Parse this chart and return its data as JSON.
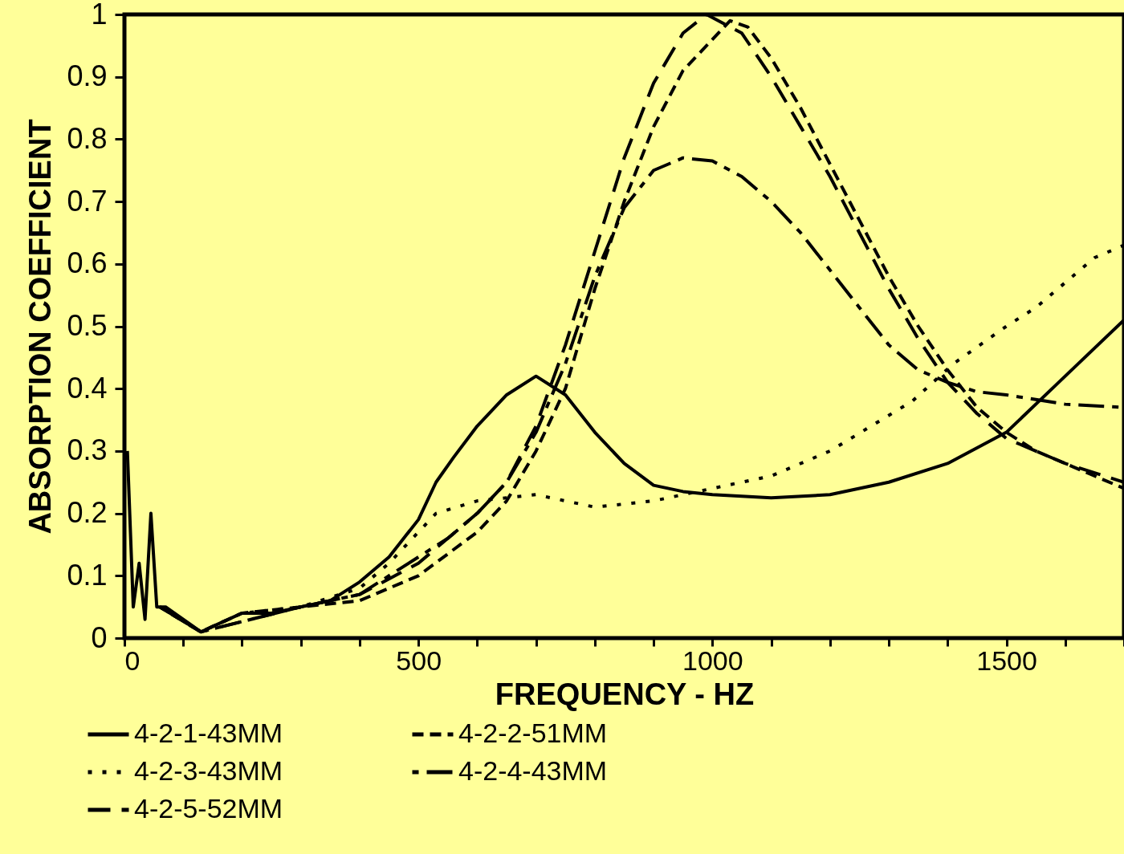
{
  "chart_data": {
    "type": "line",
    "xlabel": "FREQUENCY - HZ",
    "ylabel": "ABSORPTION COEFFICIENT",
    "xlim": [
      0,
      1700
    ],
    "ylim": [
      0,
      1
    ],
    "xticks": [
      0,
      {
        "value": 100,
        "label": null
      },
      {
        "value": 200,
        "label": null
      },
      {
        "value": 300,
        "label": null
      },
      {
        "value": 400,
        "label": null
      },
      500,
      {
        "value": 600,
        "label": null
      },
      {
        "value": 700,
        "label": null
      },
      {
        "value": 800,
        "label": null
      },
      {
        "value": 900,
        "label": null
      },
      1000,
      {
        "value": 1100,
        "label": null
      },
      {
        "value": 1200,
        "label": null
      },
      {
        "value": 1300,
        "label": null
      },
      {
        "value": 1400,
        "label": null
      },
      1500,
      {
        "value": 1600,
        "label": null
      },
      {
        "value": 1700,
        "label": null
      }
    ],
    "yticks": [
      0,
      0.1,
      0.2,
      0.3,
      0.4,
      0.5,
      0.6,
      0.7,
      0.8,
      0.9,
      1
    ],
    "grid": false,
    "legend": "bottom",
    "marker": "none",
    "series": [
      {
        "name": "4-2-1-43MM",
        "color": "#000000",
        "line_style": "solid",
        "x": [
          5,
          15,
          25,
          35,
          45,
          55,
          70,
          100,
          130,
          200,
          250,
          300,
          350,
          400,
          450,
          500,
          530,
          560,
          600,
          650,
          700,
          750,
          800,
          850,
          900,
          950,
          1000,
          1100,
          1200,
          1300,
          1400,
          1500,
          1600,
          1700
        ],
        "values": [
          0.3,
          0.05,
          0.12,
          0.03,
          0.2,
          0.05,
          0.05,
          0.03,
          0.01,
          0.04,
          0.04,
          0.05,
          0.06,
          0.09,
          0.13,
          0.19,
          0.25,
          0.29,
          0.34,
          0.39,
          0.42,
          0.39,
          0.33,
          0.28,
          0.245,
          0.235,
          0.23,
          0.225,
          0.23,
          0.25,
          0.28,
          0.33,
          0.42,
          0.51
        ]
      },
      {
        "name": "4-2-2-51MM",
        "color": "#000000",
        "line_style": "dashed",
        "x": [
          60,
          130,
          200,
          300,
          400,
          500,
          600,
          650,
          700,
          750,
          800,
          850,
          900,
          950,
          1000,
          1030,
          1060,
          1100,
          1150,
          1200,
          1250,
          1300,
          1350,
          1400,
          1450,
          1500,
          1550,
          1600,
          1650,
          1700
        ],
        "values": [
          0.05,
          0.01,
          0.04,
          0.05,
          0.06,
          0.1,
          0.17,
          0.22,
          0.3,
          0.4,
          0.56,
          0.7,
          0.82,
          0.91,
          0.96,
          0.99,
          0.98,
          0.93,
          0.85,
          0.76,
          0.67,
          0.58,
          0.5,
          0.43,
          0.37,
          0.33,
          0.3,
          0.28,
          0.26,
          0.24
        ]
      },
      {
        "name": "4-2-3-43MM",
        "color": "#000000",
        "line_style": "dotted",
        "x": [
          60,
          130,
          200,
          300,
          400,
          450,
          500,
          530,
          600,
          700,
          800,
          900,
          1000,
          1100,
          1200,
          1340,
          1410,
          1500,
          1550,
          1600,
          1650,
          1700
        ],
        "values": [
          0.05,
          0.01,
          0.04,
          0.05,
          0.08,
          0.12,
          0.17,
          0.2,
          0.22,
          0.23,
          0.21,
          0.22,
          0.24,
          0.26,
          0.3,
          0.38,
          0.44,
          0.5,
          0.53,
          0.57,
          0.61,
          0.63
        ]
      },
      {
        "name": "4-2-4-43MM",
        "color": "#000000",
        "line_style": "dashed",
        "x": [
          60,
          130,
          300,
          400,
          500,
          550,
          600,
          650,
          700,
          750,
          800,
          850,
          900,
          950,
          1000,
          1050,
          1100,
          1150,
          1200,
          1250,
          1300,
          1350,
          1400,
          1450,
          1500,
          1600,
          1700
        ],
        "values": [
          0.05,
          0.01,
          0.05,
          0.07,
          0.13,
          0.16,
          0.2,
          0.25,
          0.33,
          0.44,
          0.58,
          0.69,
          0.75,
          0.77,
          0.765,
          0.74,
          0.7,
          0.65,
          0.59,
          0.53,
          0.47,
          0.43,
          0.41,
          0.395,
          0.39,
          0.375,
          0.37
        ]
      },
      {
        "name": "4-2-5-52MM",
        "color": "#000000",
        "line_style": "dashed",
        "x": [
          60,
          130,
          300,
          400,
          500,
          600,
          650,
          700,
          750,
          800,
          850,
          900,
          950,
          990,
          1050,
          1100,
          1150,
          1200,
          1250,
          1300,
          1350,
          1400,
          1450,
          1500,
          1600,
          1700
        ],
        "values": [
          0.05,
          0.01,
          0.05,
          0.07,
          0.12,
          0.2,
          0.25,
          0.34,
          0.47,
          0.62,
          0.77,
          0.89,
          0.97,
          1.0,
          0.97,
          0.9,
          0.82,
          0.74,
          0.65,
          0.56,
          0.48,
          0.41,
          0.36,
          0.32,
          0.28,
          0.25
        ]
      }
    ]
  }
}
